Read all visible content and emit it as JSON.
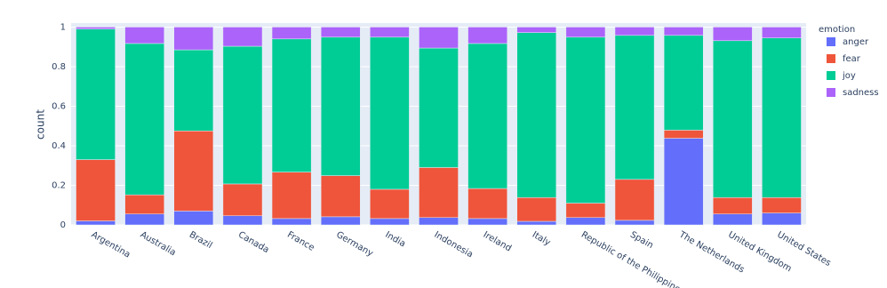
{
  "chart_data": {
    "type": "bar",
    "stacked": true,
    "grid": true,
    "y_label": "count",
    "legend_title": "emotion",
    "categories": [
      "Argentina",
      "Australia",
      "Brazil",
      "Canada",
      "France",
      "Germany",
      "India",
      "Indonesia",
      "Ireland",
      "Italy",
      "Republic of the Philippines",
      "Spain",
      "The Netherlands",
      "United Kingdom",
      "United States"
    ],
    "series": [
      {
        "name": "anger",
        "color": "#636efa",
        "values": [
          0.02,
          0.055,
          0.07,
          0.046,
          0.032,
          0.041,
          0.032,
          0.037,
          0.032,
          0.018,
          0.037,
          0.023,
          0.438,
          0.055,
          0.06
        ]
      },
      {
        "name": "fear",
        "color": "#ef553b",
        "values": [
          0.31,
          0.097,
          0.405,
          0.161,
          0.235,
          0.208,
          0.148,
          0.253,
          0.152,
          0.12,
          0.073,
          0.207,
          0.041,
          0.083,
          0.078
        ]
      },
      {
        "name": "joy",
        "color": "#00cc96",
        "values": [
          0.66,
          0.765,
          0.41,
          0.696,
          0.673,
          0.7,
          0.769,
          0.604,
          0.733,
          0.834,
          0.839,
          0.728,
          0.479,
          0.793,
          0.807
        ]
      },
      {
        "name": "sadness",
        "color": "#ab63fa",
        "values": [
          0.01,
          0.083,
          0.115,
          0.097,
          0.06,
          0.051,
          0.051,
          0.106,
          0.083,
          0.028,
          0.051,
          0.042,
          0.042,
          0.069,
          0.055
        ]
      }
    ],
    "ylim": [
      0,
      1.02
    ],
    "yticks": [
      0,
      0.2,
      0.4,
      0.6,
      0.8,
      1
    ]
  }
}
